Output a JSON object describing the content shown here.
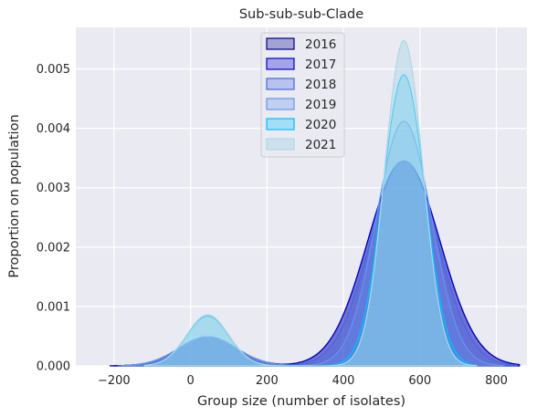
{
  "chart_data": {
    "type": "area",
    "title": "Sub-sub-sub-Clade",
    "xlabel": "Group size (number of isolates)",
    "ylabel": "Proportion on population",
    "xlim": [
      -300,
      880
    ],
    "ylim": [
      0,
      0.0057
    ],
    "xticks": [
      -200,
      0,
      200,
      400,
      600,
      800
    ],
    "xtick_labels": [
      "−200",
      "0",
      "200",
      "400",
      "600",
      "800"
    ],
    "yticks": [
      0,
      0.001,
      0.002,
      0.003,
      0.004,
      0.005
    ],
    "ytick_labels": [
      "0.000",
      "0.001",
      "0.002",
      "0.003",
      "0.004",
      "0.005"
    ],
    "grid": true,
    "background": "#eaeaf2",
    "legend_position": "upper center",
    "series": [
      {
        "name": "2016",
        "color": "#00008b",
        "fill_opacity": 0.3,
        "x_range": [
          -200,
          860
        ],
        "peaks": [
          {
            "center": 45,
            "height": 0.00049,
            "sigma": 75
          },
          {
            "center": 558,
            "height": 0.00345,
            "sigma": 95
          }
        ]
      },
      {
        "name": "2017",
        "color": "#0000cd",
        "fill_opacity": 0.3,
        "x_range": [
          -210,
          860
        ],
        "peaks": [
          {
            "center": 45,
            "height": 0.00049,
            "sigma": 75
          },
          {
            "center": 558,
            "height": 0.00345,
            "sigma": 95
          }
        ]
      },
      {
        "name": "2018",
        "color": "#4169e1",
        "fill_opacity": 0.3,
        "x_range": [
          -190,
          855
        ],
        "peaks": [
          {
            "center": 45,
            "height": 0.00049,
            "sigma": 75
          },
          {
            "center": 558,
            "height": 0.00345,
            "sigma": 88
          }
        ]
      },
      {
        "name": "2019",
        "color": "#6495ed",
        "fill_opacity": 0.3,
        "x_range": [
          -180,
          820
        ],
        "peaks": [
          {
            "center": 45,
            "height": 0.00049,
            "sigma": 75
          },
          {
            "center": 558,
            "height": 0.00412,
            "sigma": 72
          }
        ]
      },
      {
        "name": "2020",
        "color": "#00bfff",
        "fill_opacity": 0.3,
        "x_range": [
          -120,
          748
        ],
        "peaks": [
          {
            "center": 45,
            "height": 0.00084,
            "sigma": 55
          },
          {
            "center": 558,
            "height": 0.0049,
            "sigma": 55
          }
        ]
      },
      {
        "name": "2021",
        "color": "#add8e6",
        "fill_opacity": 0.5,
        "x_range": [
          -120,
          748
        ],
        "peaks": [
          {
            "center": 45,
            "height": 0.00086,
            "sigma": 55
          },
          {
            "center": 558,
            "height": 0.00548,
            "sigma": 50
          }
        ]
      }
    ]
  }
}
